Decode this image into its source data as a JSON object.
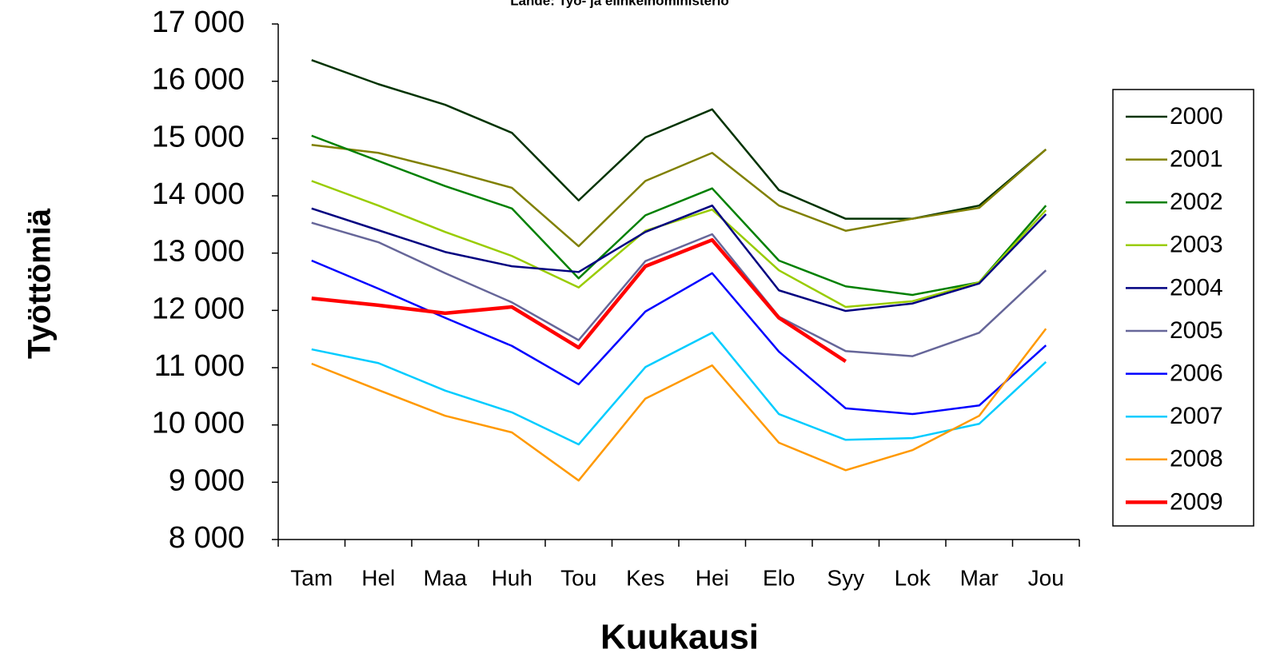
{
  "chart_data": {
    "type": "line",
    "subtitle": "Lähde: Työ- ja elinkeinoministeriö",
    "x_label": "Kuukausi",
    "y_label": "Työttömiä",
    "categories": [
      "Tam",
      "Hel",
      "Maa",
      "Huh",
      "Tou",
      "Kes",
      "Hei",
      "Elo",
      "Syy",
      "Lok",
      "Mar",
      "Jou"
    ],
    "ylim": [
      8000,
      17000
    ],
    "yticks": [
      {
        "value": 8000,
        "label": "8 000"
      },
      {
        "value": 9000,
        "label": "9 000"
      },
      {
        "value": 10000,
        "label": "10 000"
      },
      {
        "value": 11000,
        "label": "11 000"
      },
      {
        "value": 12000,
        "label": "12 000"
      },
      {
        "value": 13000,
        "label": "13 000"
      },
      {
        "value": 14000,
        "label": "14 000"
      },
      {
        "value": 15000,
        "label": "15 000"
      },
      {
        "value": 16000,
        "label": "16 000"
      },
      {
        "value": 17000,
        "label": "17 000"
      }
    ],
    "grid": false,
    "legend": "right",
    "series": [
      {
        "name": "2000",
        "color": "#003300",
        "values": [
          16370,
          15950,
          15590,
          15100,
          13920,
          15020,
          15510,
          14100,
          13600,
          13600,
          13830,
          14810
        ]
      },
      {
        "name": "2001",
        "color": "#808000",
        "values": [
          14890,
          14750,
          14460,
          14140,
          13120,
          14260,
          14750,
          13830,
          13390,
          13600,
          13790,
          14810
        ]
      },
      {
        "name": "2002",
        "color": "#008000",
        "values": [
          15050,
          14610,
          14170,
          13780,
          12560,
          13660,
          14130,
          12870,
          12420,
          12270,
          12490,
          13830
        ]
      },
      {
        "name": "2003",
        "color": "#99cc00",
        "values": [
          14260,
          13830,
          13370,
          12950,
          12400,
          13390,
          13760,
          12700,
          12060,
          12160,
          12490,
          13750
        ]
      },
      {
        "name": "2004",
        "color": "#000080",
        "values": [
          13780,
          13400,
          13020,
          12770,
          12670,
          13370,
          13830,
          12350,
          11990,
          12120,
          12470,
          13680
        ]
      },
      {
        "name": "2005",
        "color": "#666699",
        "values": [
          13530,
          13190,
          12650,
          12140,
          11480,
          12860,
          13330,
          11890,
          11290,
          11200,
          11610,
          12700
        ]
      },
      {
        "name": "2006",
        "color": "#0000ff",
        "values": [
          12870,
          12380,
          11870,
          11380,
          10710,
          11980,
          12650,
          11280,
          10290,
          10190,
          10340,
          11390
        ]
      },
      {
        "name": "2007",
        "color": "#00ccff",
        "values": [
          11320,
          11080,
          10600,
          10220,
          9660,
          11010,
          11610,
          10190,
          9740,
          9770,
          10020,
          11100
        ]
      },
      {
        "name": "2008",
        "color": "#ff9900",
        "values": [
          11070,
          10610,
          10160,
          9870,
          9030,
          10460,
          11040,
          9690,
          9210,
          9560,
          10160,
          11680
        ]
      },
      {
        "name": "2009",
        "color": "#ff0000",
        "values": [
          12210,
          12090,
          11950,
          12060,
          11350,
          12770,
          13230,
          11870,
          11110,
          null,
          null,
          null
        ]
      }
    ]
  }
}
